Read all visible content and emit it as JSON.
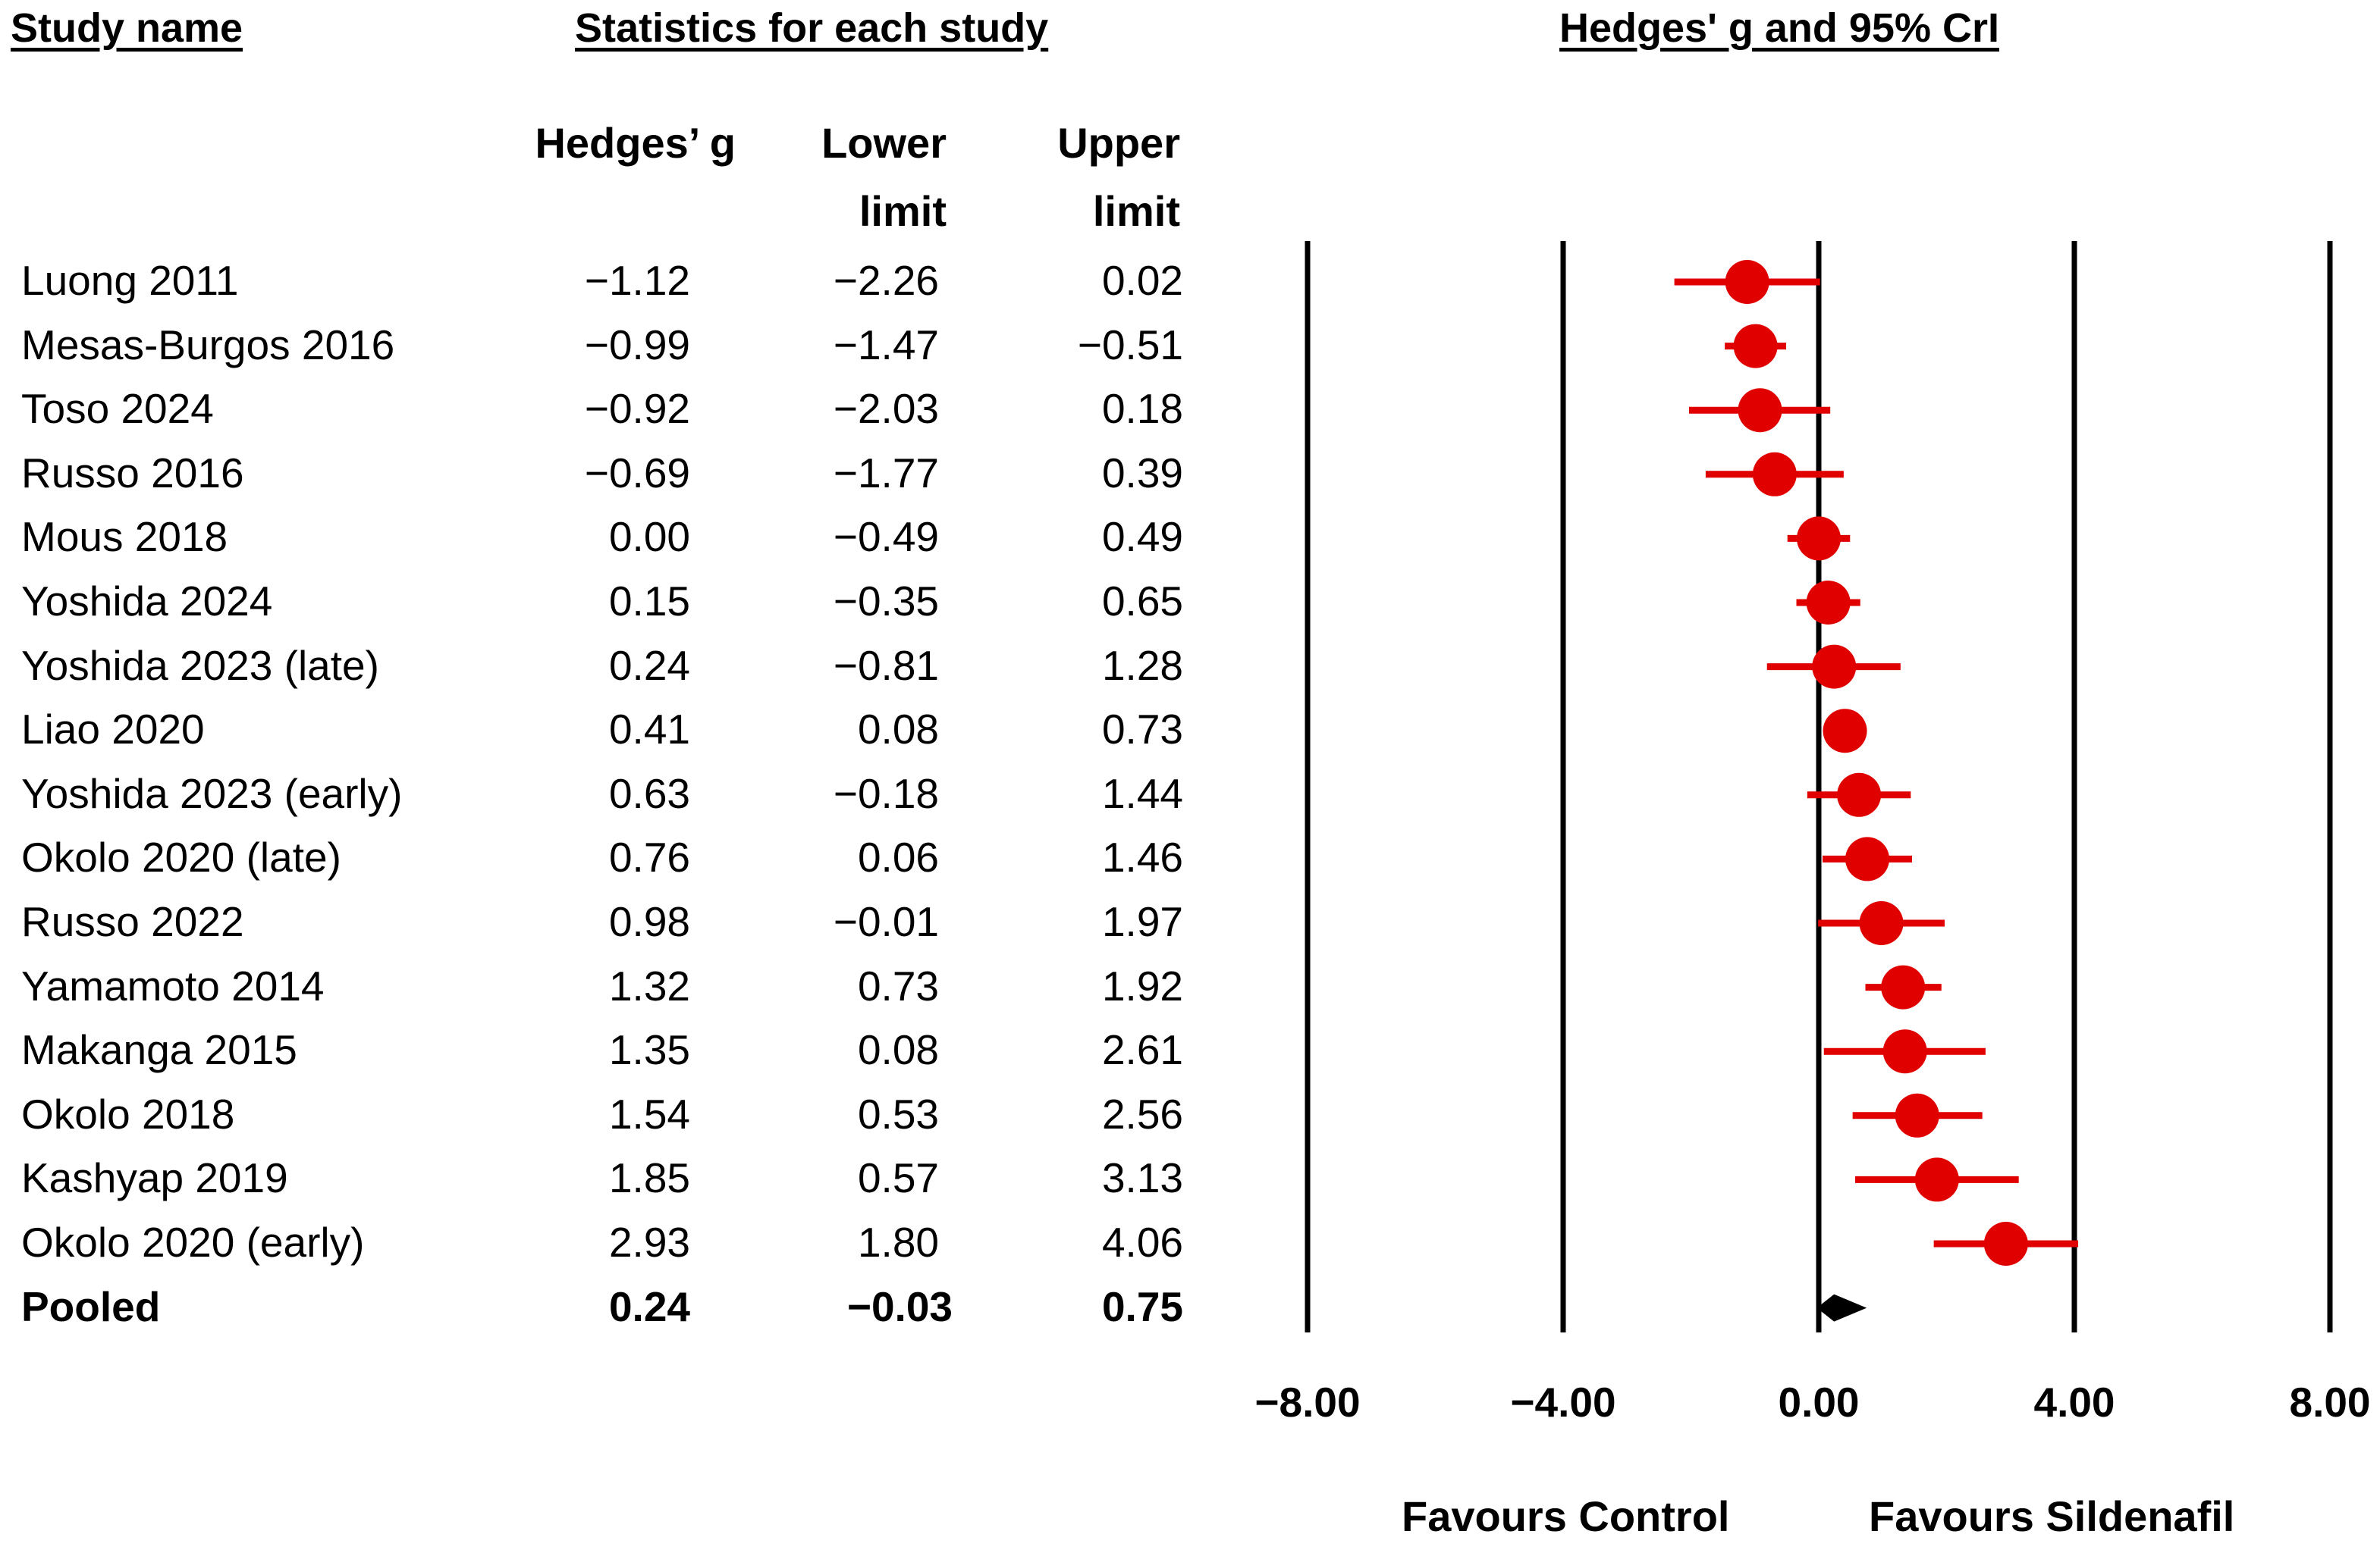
{
  "headers": {
    "study_name": "Study name",
    "statistics": "Statistics for each study",
    "plot": "Hedges' g and 95% CrI"
  },
  "columns": {
    "hedges_g": "Hedges’ g",
    "lower_1": "Lower",
    "lower_2": "limit",
    "upper_1": "Upper",
    "upper_2": "limit"
  },
  "rows": [
    {
      "name": "Luong 2011",
      "g": "−1.12",
      "lo": "−2.26",
      "hi": "0.02"
    },
    {
      "name": "Mesas-Burgos 2016",
      "g": "−0.99",
      "lo": "−1.47",
      "hi": "−0.51"
    },
    {
      "name": "Toso 2024",
      "g": "−0.92",
      "lo": "−2.03",
      "hi": "0.18"
    },
    {
      "name": "Russo 2016",
      "g": "−0.69",
      "lo": "−1.77",
      "hi": "0.39"
    },
    {
      "name": "Mous 2018",
      "g": "0.00",
      "lo": "−0.49",
      "hi": "0.49"
    },
    {
      "name": "Yoshida 2024",
      "g": "0.15",
      "lo": "−0.35",
      "hi": "0.65"
    },
    {
      "name": "Yoshida 2023 (late)",
      "g": "0.24",
      "lo": "−0.81",
      "hi": "1.28"
    },
    {
      "name": "Liao 2020",
      "g": "0.41",
      "lo": "0.08",
      "hi": "0.73"
    },
    {
      "name": "Yoshida 2023 (early)",
      "g": "0.63",
      "lo": "−0.18",
      "hi": "1.44"
    },
    {
      "name": "Okolo 2020 (late)",
      "g": "0.76",
      "lo": "0.06",
      "hi": "1.46"
    },
    {
      "name": "Russo 2022",
      "g": "0.98",
      "lo": "−0.01",
      "hi": "1.97"
    },
    {
      "name": "Yamamoto 2014",
      "g": "1.32",
      "lo": "0.73",
      "hi": "1.92"
    },
    {
      "name": "Makanga 2015",
      "g": "1.35",
      "lo": "0.08",
      "hi": "2.61"
    },
    {
      "name": "Okolo 2018",
      "g": "1.54",
      "lo": "0.53",
      "hi": "2.56"
    },
    {
      "name": "Kashyap 2019",
      "g": "1.85",
      "lo": "0.57",
      "hi": "3.13"
    },
    {
      "name": "Okolo 2020 (early)",
      "g": "2.93",
      "lo": "1.80",
      "hi": "4.06"
    }
  ],
  "pooled": {
    "name": "Pooled",
    "g": "0.24",
    "lo": "−0.03",
    "hi": "0.75"
  },
  "axis_ticks": [
    "−8.00",
    "−4.00",
    "0.00",
    "4.00",
    "8.00"
  ],
  "favours_left": "Favours Control",
  "favours_right": "Favours Sildenafil",
  "colors": {
    "marker": "#e00000",
    "diamond": "#000000",
    "lines": "#000000"
  },
  "chart_data": {
    "type": "forest",
    "xlim": [
      -8,
      8
    ],
    "gridlines": [
      -8,
      -4,
      0,
      4,
      8
    ],
    "studies": [
      {
        "name": "Luong 2011",
        "g": -1.12,
        "lo": -2.26,
        "hi": 0.02
      },
      {
        "name": "Mesas-Burgos 2016",
        "g": -0.99,
        "lo": -1.47,
        "hi": -0.51
      },
      {
        "name": "Toso 2024",
        "g": -0.92,
        "lo": -2.03,
        "hi": 0.18
      },
      {
        "name": "Russo 2016",
        "g": -0.69,
        "lo": -1.77,
        "hi": 0.39
      },
      {
        "name": "Mous 2018",
        "g": 0.0,
        "lo": -0.49,
        "hi": 0.49
      },
      {
        "name": "Yoshida 2024",
        "g": 0.15,
        "lo": -0.35,
        "hi": 0.65
      },
      {
        "name": "Yoshida 2023 (late)",
        "g": 0.24,
        "lo": -0.81,
        "hi": 1.28
      },
      {
        "name": "Liao 2020",
        "g": 0.41,
        "lo": 0.08,
        "hi": 0.73
      },
      {
        "name": "Yoshida 2023 (early)",
        "g": 0.63,
        "lo": -0.18,
        "hi": 1.44
      },
      {
        "name": "Okolo 2020 (late)",
        "g": 0.76,
        "lo": 0.06,
        "hi": 1.46
      },
      {
        "name": "Russo 2022",
        "g": 0.98,
        "lo": -0.01,
        "hi": 1.97
      },
      {
        "name": "Yamamoto 2014",
        "g": 1.32,
        "lo": 0.73,
        "hi": 1.92
      },
      {
        "name": "Makanga 2015",
        "g": 1.35,
        "lo": 0.08,
        "hi": 2.61
      },
      {
        "name": "Okolo 2018",
        "g": 1.54,
        "lo": 0.53,
        "hi": 2.56
      },
      {
        "name": "Kashyap 2019",
        "g": 1.85,
        "lo": 0.57,
        "hi": 3.13
      },
      {
        "name": "Okolo 2020 (early)",
        "g": 2.93,
        "lo": 1.8,
        "hi": 4.06
      }
    ],
    "pooled": {
      "g": 0.24,
      "lo": -0.03,
      "hi": 0.75
    }
  }
}
